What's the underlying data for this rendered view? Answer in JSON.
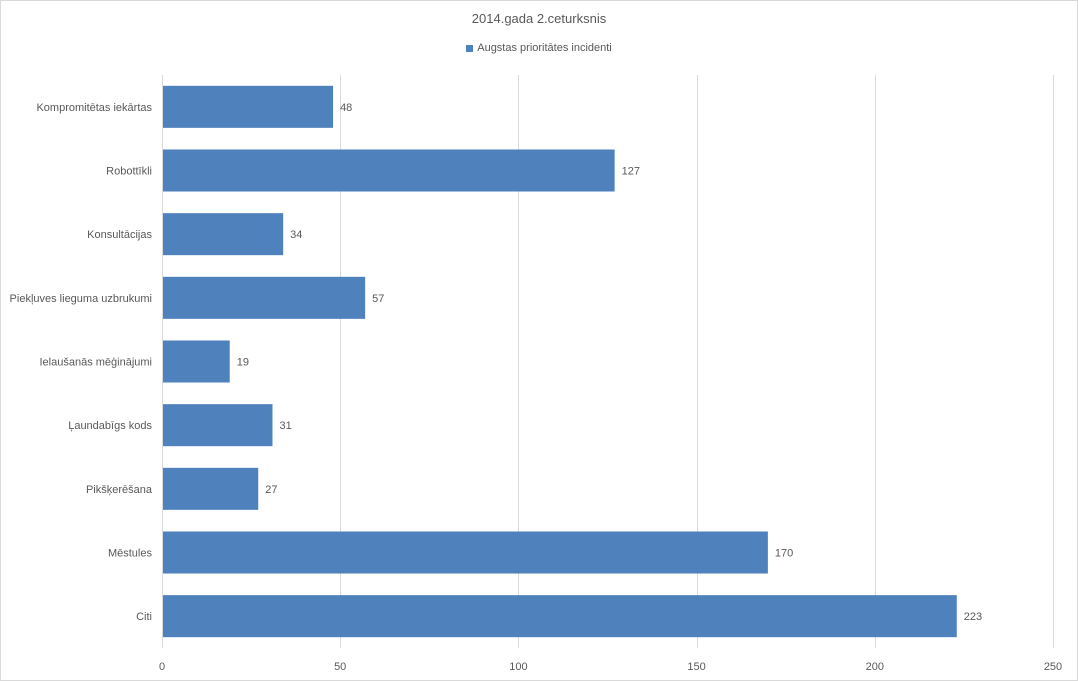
{
  "chart_data": {
    "type": "bar",
    "orientation": "horizontal",
    "title": "2014.gada 2.ceturksnis",
    "xlabel": "",
    "ylabel": "",
    "categories": [
      "Kompromitētas iekārtas",
      "Robottīkli",
      "Konsultācijas",
      "Piekļuves lieguma uzbrukumi",
      "Ielaušanās mēģinājumi",
      "Ļaundabīgs kods",
      "Pikšķerēšana",
      "Mēstules",
      "Citi"
    ],
    "series": [
      {
        "name": "Augstas prioritātes incidenti",
        "values": [
          48,
          127,
          34,
          57,
          19,
          31,
          27,
          170,
          223
        ],
        "color": "#4f81bd"
      }
    ],
    "xlim": [
      0,
      250
    ],
    "xticks": [
      0,
      50,
      100,
      150,
      200,
      250
    ],
    "grid": "vertical",
    "legend_position": "top",
    "data_labels": true
  }
}
